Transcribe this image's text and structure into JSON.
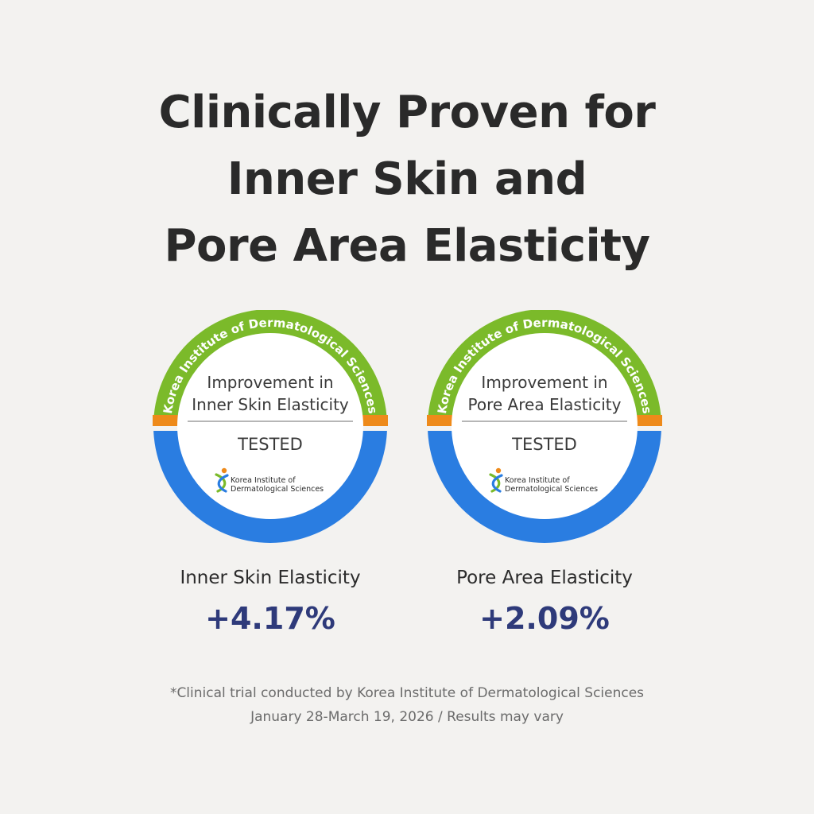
{
  "headline": {
    "line1": "Clinically Proven for",
    "line2": "Inner Skin and",
    "line3": "Pore Area Elasticity"
  },
  "colors": {
    "ring_green": "#7bba2a",
    "ring_blue": "#2a7de1",
    "ring_orange": "#ee8a1a",
    "value_navy": "#2e3a7a"
  },
  "badges": [
    {
      "arc_text": "Korea Institute of Dermatological Sciences",
      "heading_line1": "Improvement in",
      "heading_line2": "Inner Skin Elasticity",
      "status": "TESTED",
      "logo_line1": "Korea Institute of",
      "logo_line2": "Dermatological Sciences",
      "logo_icon": "dna-helix-icon",
      "metric_label": "Inner Skin Elasticity",
      "metric_value": "+4.17%"
    },
    {
      "arc_text": "Korea Institute of Dermatological Sciences",
      "heading_line1": "Improvement in",
      "heading_line2": "Pore Area Elasticity",
      "status": "TESTED",
      "logo_line1": "Korea Institute of",
      "logo_line2": "Dermatological Sciences",
      "logo_icon": "dna-helix-icon",
      "metric_label": "Pore Area Elasticity",
      "metric_value": "+2.09%"
    }
  ],
  "footnote": {
    "line1": "*Clinical trial conducted by Korea Institute of Dermatological Sciences",
    "line2": "January 28-March 19, 2026 / Results may vary"
  }
}
